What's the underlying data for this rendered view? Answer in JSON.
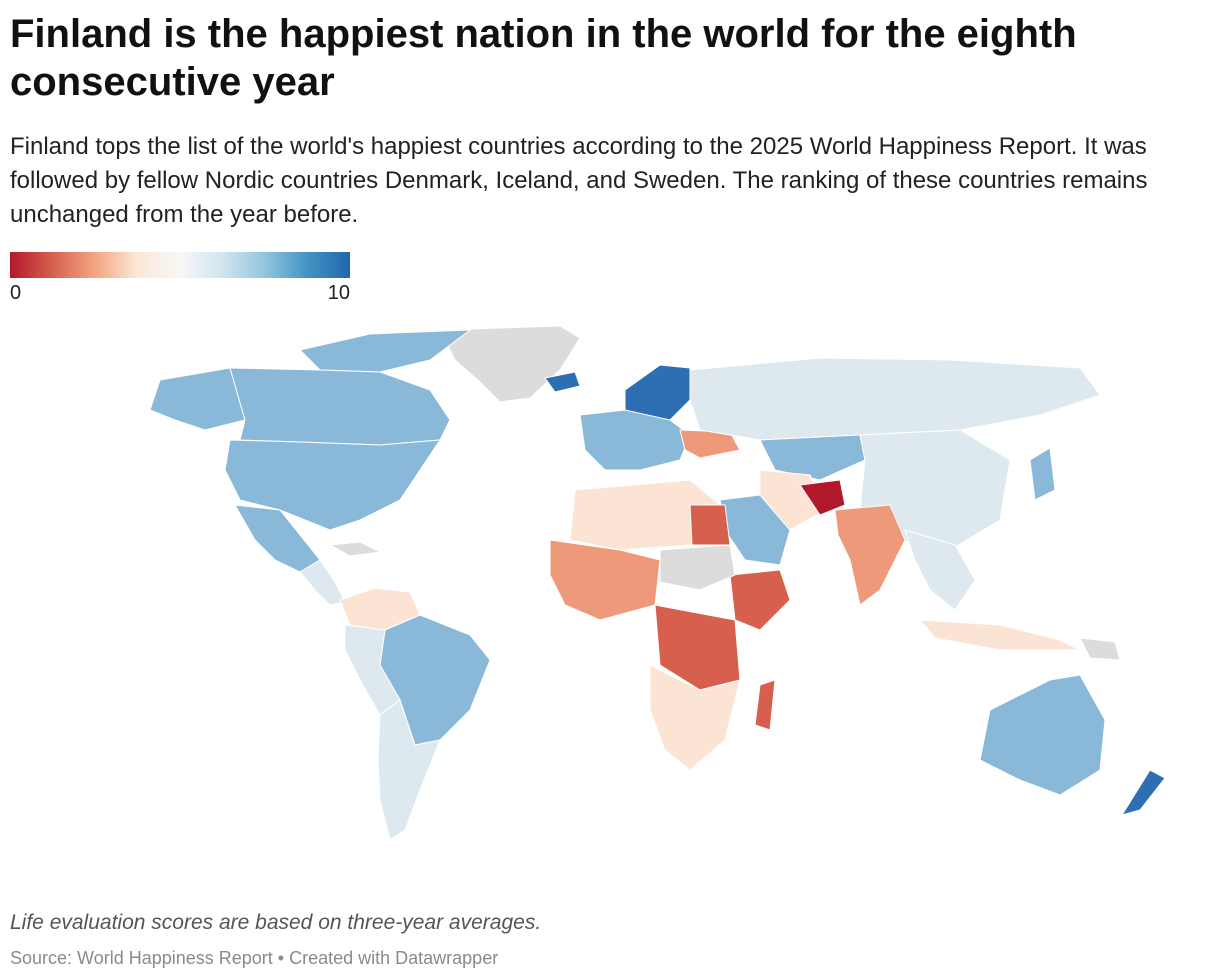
{
  "title": "Finland is the happiest nation in the world for the eighth consecutive year",
  "subtitle": "Finland tops the list of the world's happiest countries according to the 2025 World Happiness Report. It was followed by fellow Nordic countries Denmark, Iceland, and Sweden. The ranking of these countries remains unchanged from the year before.",
  "legend": {
    "min_label": "0",
    "max_label": "10",
    "scale_colors": [
      "#b2182b",
      "#d6604d",
      "#f4a582",
      "#fbe8d8",
      "#f7f7f7",
      "#d1e5f0",
      "#92c5de",
      "#4393c3",
      "#2166ac"
    ]
  },
  "colors": {
    "no_data": "#dcdcdc",
    "lowest": "#b2182b",
    "low": "#d6604d",
    "lower_mid": "#ee9a7a",
    "mid": "#fbe4d4",
    "upper_mid": "#dde9ee",
    "high": "#8ab8d8",
    "highest": "#2e6fb4"
  },
  "note": "Life evaluation scores are based on three-year averages.",
  "source": "Source: World Happiness Report • Created with Datawrapper"
}
